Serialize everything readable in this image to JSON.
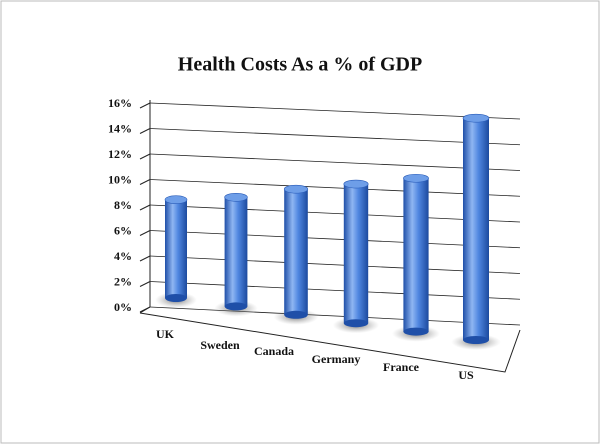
{
  "chart_data": {
    "type": "bar3d",
    "title": "Health Costs As a % of GDP",
    "categories": [
      "UK",
      "Sweden",
      "Canada",
      "Germany",
      "France",
      "US"
    ],
    "values": [
      8.4,
      8.9,
      9.8,
      10.4,
      11.0,
      15.3
    ],
    "color": "#3c78d8",
    "ylim": [
      0,
      16
    ],
    "yticks": [
      {
        "value": 0,
        "label": "0%"
      },
      {
        "value": 2,
        "label": "2%"
      },
      {
        "value": 4,
        "label": "4%"
      },
      {
        "value": 6,
        "label": "6%"
      },
      {
        "value": 8,
        "label": "8%"
      },
      {
        "value": 10,
        "label": "10%"
      },
      {
        "value": 12,
        "label": "12%"
      },
      {
        "value": 14,
        "label": "14%"
      },
      {
        "value": 16,
        "label": "16%"
      }
    ],
    "grid": true
  }
}
